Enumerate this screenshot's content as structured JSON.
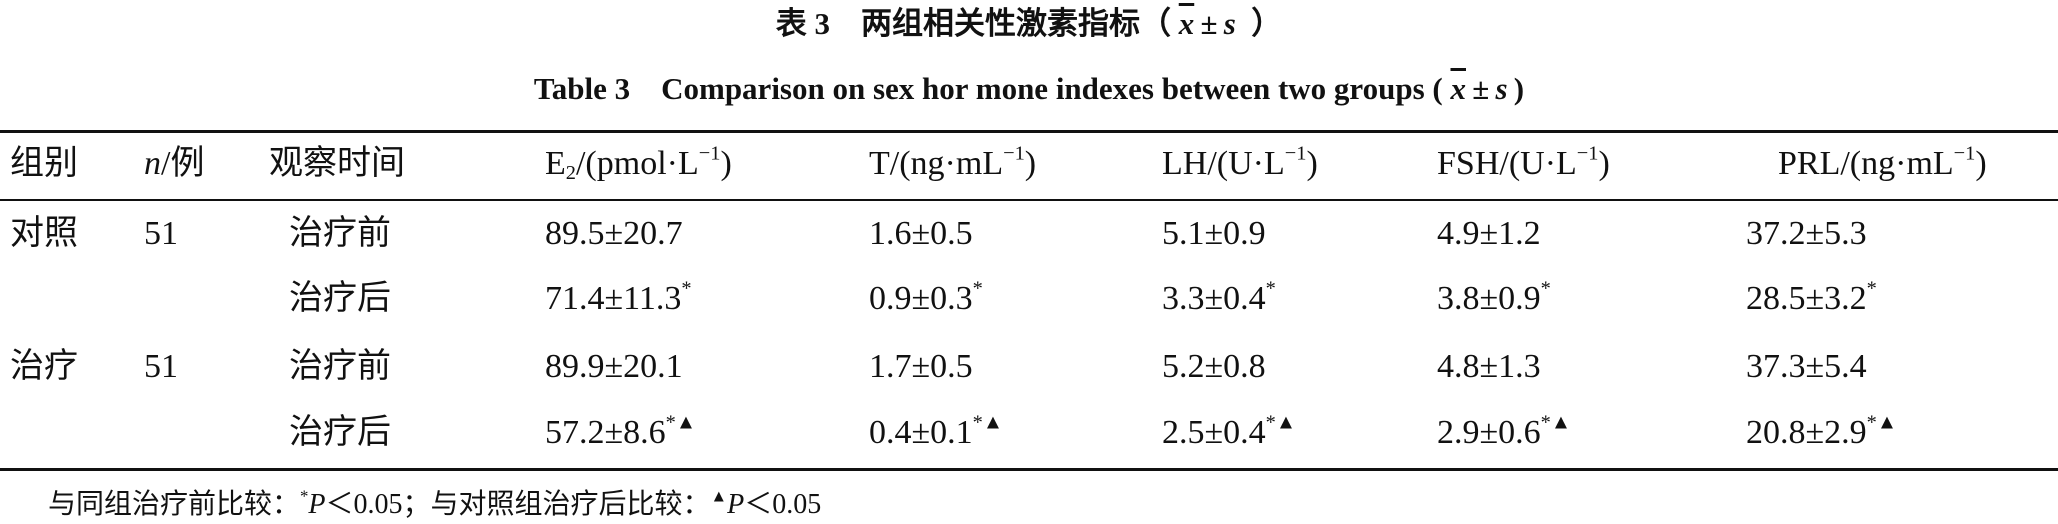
{
  "title_cn": {
    "label": "表 3",
    "text": "两组相关性激素指标（",
    "mean": "x",
    "pm": "±",
    "sd": "s",
    "close": "）"
  },
  "title_en": {
    "label": "Table 3",
    "text": "Comparison on sex hor mone indexes between two groups (",
    "mean": "x",
    "pm": "±",
    "sd": "s",
    "close": ")"
  },
  "table": {
    "header": {
      "group": "组别",
      "n": {
        "italic": "n",
        "text": "/例"
      },
      "time": "观察时间",
      "measures": [
        {
          "name": "E",
          "sub": "2",
          "unit": "/(pmol·L",
          "sup": "−1",
          "close": ")"
        },
        {
          "name": "T",
          "unit": "/(ng·mL",
          "sup": "−1",
          "close": ")"
        },
        {
          "name": "LH",
          "unit": "/(U·L",
          "sup": "−1",
          "close": ")"
        },
        {
          "name": "FSH",
          "unit": "/(U·L",
          "sup": "−1",
          "close": ")"
        },
        {
          "name": "PRL",
          "unit": "/(ng·mL",
          "sup": "−1",
          "close": ")"
        }
      ]
    },
    "rows": [
      {
        "group": "对照",
        "n": "51",
        "time": "治疗前",
        "cells": [
          {
            "text": "89.5±20.7"
          },
          {
            "text": "1.6±0.5"
          },
          {
            "text": "5.1±0.9"
          },
          {
            "text": "4.9±1.2"
          },
          {
            "text": "37.2±5.3"
          }
        ]
      },
      {
        "time": "治疗后",
        "cells": [
          {
            "text": "71.4±11.3",
            "sup": "*"
          },
          {
            "text": "0.9±0.3",
            "sup": "*"
          },
          {
            "text": "3.3±0.4",
            "sup": "*"
          },
          {
            "text": "3.8±0.9",
            "sup": "*"
          },
          {
            "text": "28.5±3.2",
            "sup": "*"
          }
        ]
      },
      {
        "group": "治疗",
        "n": "51",
        "time": "治疗前",
        "cells": [
          {
            "text": "89.9±20.1"
          },
          {
            "text": "1.7±0.5"
          },
          {
            "text": "5.2±0.8"
          },
          {
            "text": "4.8±1.3"
          },
          {
            "text": "37.3±5.4"
          }
        ]
      },
      {
        "time": "治疗后",
        "cells": [
          {
            "text": "57.2±8.6",
            "sup": "*▲"
          },
          {
            "text": "0.4±0.1",
            "sup": "*▲"
          },
          {
            "text": "2.5±0.4",
            "sup": "*▲"
          },
          {
            "text": "2.9±0.6",
            "sup": "*▲"
          },
          {
            "text": "20.8±2.9",
            "sup": "*▲"
          }
        ]
      }
    ]
  },
  "footnote": {
    "text1": "与同组治疗前比较：",
    "mark1": "*",
    "p1": "P",
    "cmp1": "＜0.05；与对照组治疗后比较：",
    "mark2": "▲",
    "p2": "P",
    "cmp2": "＜0.05"
  }
}
